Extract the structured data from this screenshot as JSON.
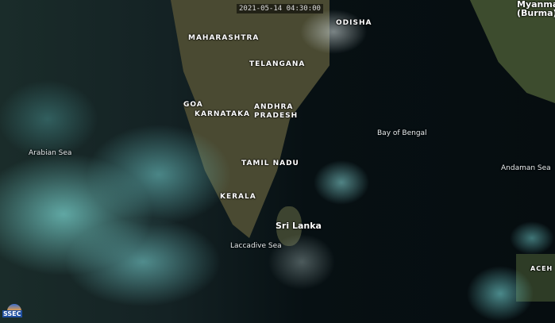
{
  "timestamp": "2021-05-14 04:30:00",
  "logo": "SSEC",
  "labels": {
    "myanmar": "Myanmar\n(Burma)",
    "myanmar_1": "Myanmar",
    "myanmar_2": "(Burma)",
    "maharashtra": "MAHARASHTRA",
    "odisha": "ODISHA",
    "telangana": "TELANGANA",
    "goa": "GOA",
    "karnataka": "KARNATAKA",
    "andhra_1": "ANDHRA",
    "andhra_2": "PRADESH",
    "arabian_sea": "Arabian Sea",
    "bay_of_bengal": "Bay of Bengal",
    "andaman_sea": "Andaman Sea",
    "tamil_nadu": "TAMIL NADU",
    "kerala": "KERALA",
    "sri_lanka": "Sri Lanka",
    "laccadive_sea": "Laccadive Sea",
    "aceh": "ACEH"
  },
  "colors": {
    "ocean": "#071013",
    "land": "#4a4a32",
    "cloud": "#7fd6d2"
  }
}
